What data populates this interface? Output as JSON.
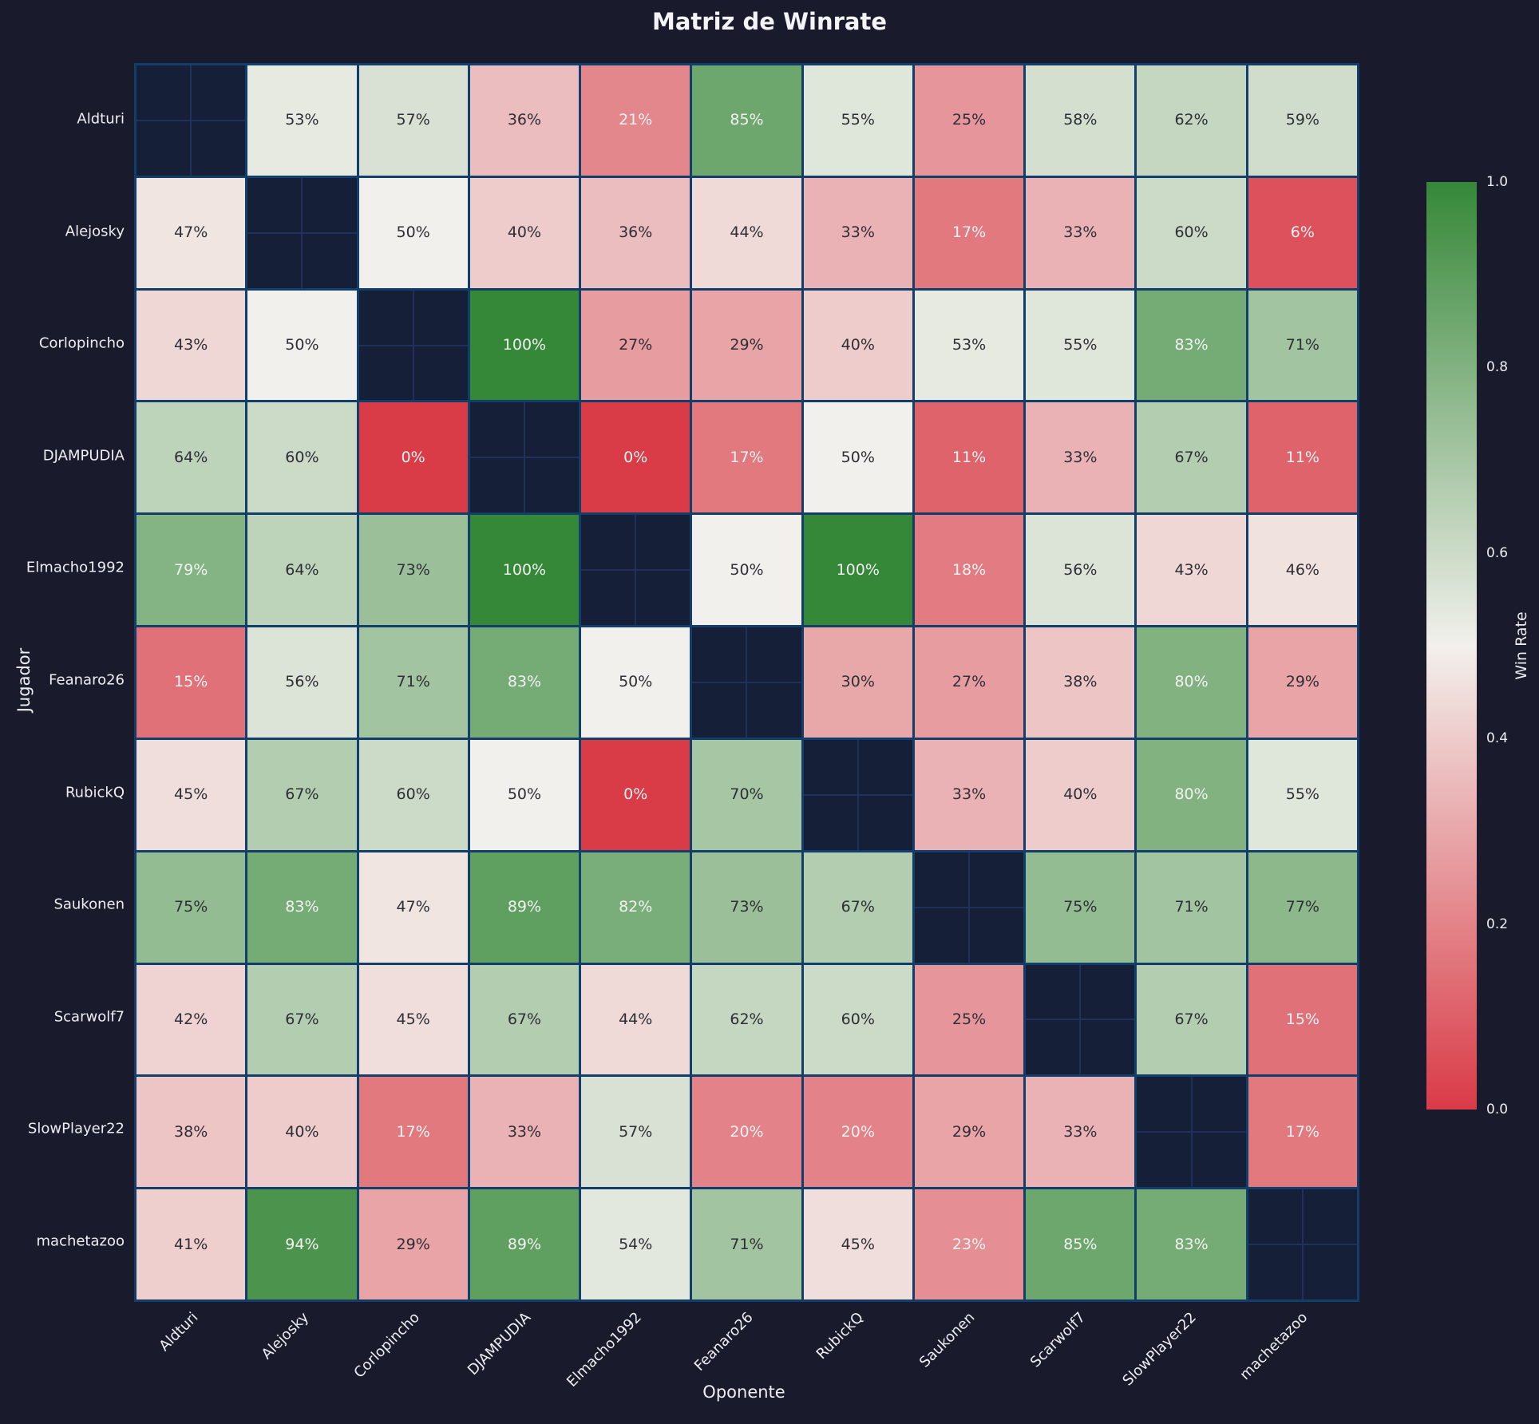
{
  "title": "Matriz de Winrate",
  "xlabel": "Oponente",
  "ylabel": "Jugador",
  "colorbar": {
    "label": "Win Rate",
    "ticks": [
      "1.0",
      "0.8",
      "0.6",
      "0.4",
      "0.2",
      "0.0"
    ],
    "tick_values": [
      1.0,
      0.8,
      0.6,
      0.4,
      0.2,
      0.0
    ]
  },
  "colors": {
    "background": "#191b2c",
    "grid_line": "#123e6b",
    "diagonal_cell": "#161f38",
    "cmap_low_red": "#d93b47",
    "cmap_mid_white": "#f2f0ec",
    "cmap_high_green": "#358838",
    "cell_text_dark": "#2e2e36",
    "cell_text_light": "#f2f2f2",
    "label_text": "#eceef2"
  },
  "chart_data": {
    "type": "heatmap",
    "title": "Matriz de Winrate",
    "xlabel": "Oponente",
    "ylabel": "Jugador",
    "legend_label": "Win Rate",
    "vmin": 0.0,
    "vmax": 1.0,
    "cell_label_suffix": "%",
    "players": [
      "Aldturi",
      "Alejosky",
      "Corlopincho",
      "DJAMPUDIA",
      "Elmacho1992",
      "Feanaro26",
      "RubickQ",
      "Saukonen",
      "Scarwolf7",
      "SlowPlayer22",
      "machetazoo"
    ],
    "values_percent": [
      [
        null,
        53,
        57,
        36,
        21,
        85,
        55,
        25,
        58,
        62,
        59
      ],
      [
        47,
        null,
        50,
        40,
        36,
        44,
        33,
        17,
        33,
        60,
        6
      ],
      [
        43,
        50,
        null,
        100,
        27,
        29,
        40,
        53,
        55,
        83,
        71
      ],
      [
        64,
        60,
        0,
        null,
        0,
        17,
        50,
        11,
        33,
        67,
        11
      ],
      [
        79,
        64,
        73,
        100,
        null,
        50,
        100,
        18,
        56,
        43,
        46
      ],
      [
        15,
        56,
        71,
        83,
        50,
        null,
        30,
        27,
        38,
        80,
        29
      ],
      [
        45,
        67,
        60,
        50,
        0,
        70,
        null,
        33,
        40,
        80,
        55
      ],
      [
        75,
        83,
        47,
        89,
        82,
        73,
        67,
        null,
        75,
        71,
        77
      ],
      [
        42,
        67,
        45,
        67,
        44,
        62,
        60,
        25,
        null,
        67,
        15
      ],
      [
        38,
        40,
        17,
        33,
        57,
        20,
        20,
        29,
        33,
        null,
        17
      ],
      [
        41,
        94,
        29,
        89,
        54,
        71,
        45,
        23,
        85,
        83,
        null
      ]
    ]
  }
}
